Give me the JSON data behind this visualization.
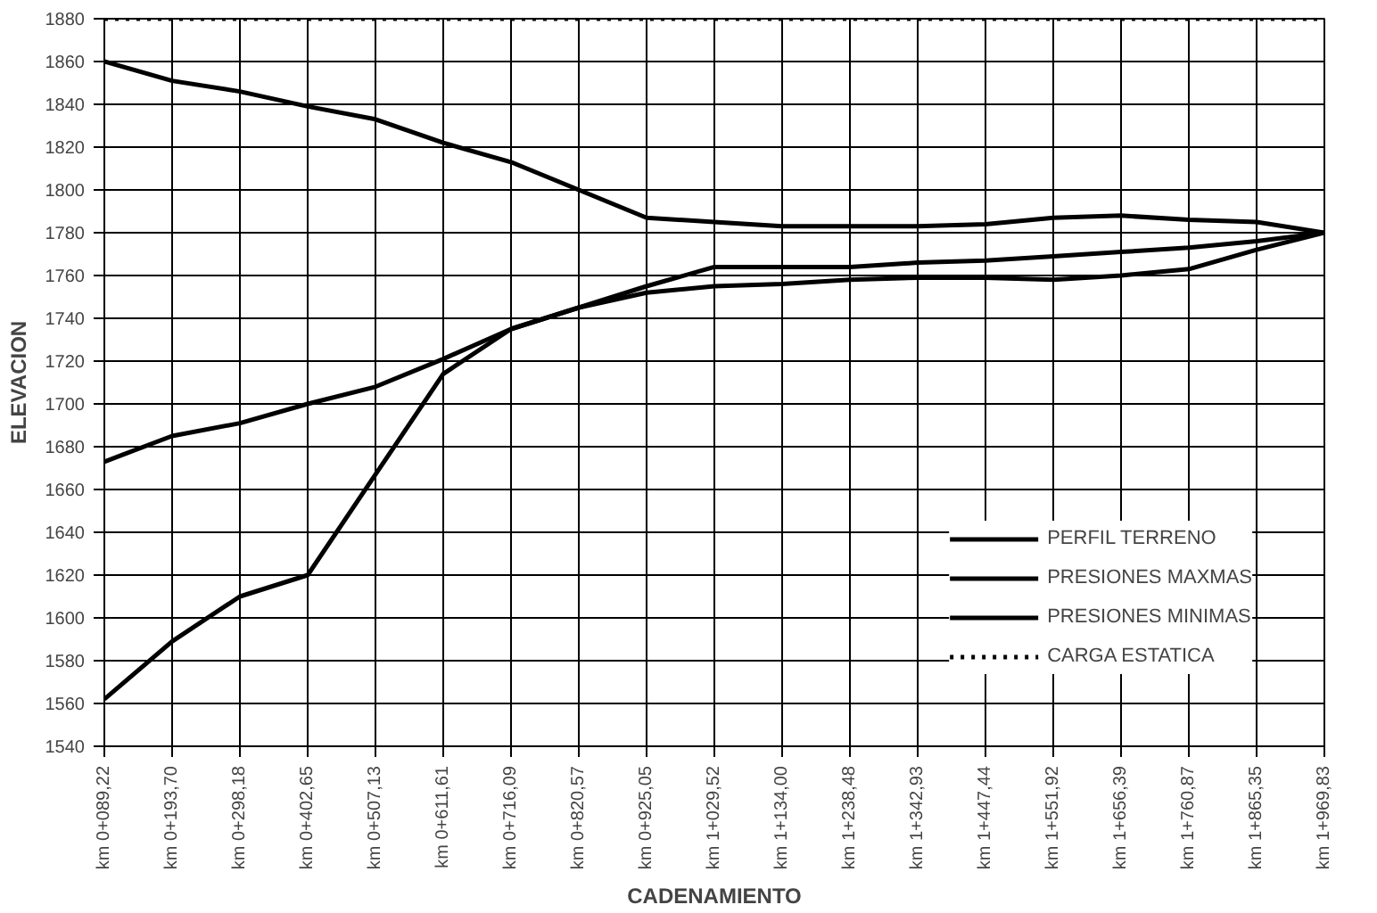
{
  "chart_data": {
    "type": "line",
    "xlabel": "CADENAMIENTO",
    "ylabel": "ELEVACION",
    "categories": [
      "km 0+089,22",
      "km 0+193,70",
      "km 0+298,18",
      "km 0+402,65",
      "km 0+507,13",
      "km 0+611,61",
      "km 0+716,09",
      "km 0+820,57",
      "km 0+925,05",
      "km 1+029,52",
      "km 1+134,00",
      "km 1+238,48",
      "km 1+342,93",
      "km 1+447,44",
      "km 1+551,92",
      "km 1+656,39",
      "km 1+760,87",
      "km 1+865,35",
      "km 1+969,83"
    ],
    "series": [
      {
        "name": "PERFIL TERRENO",
        "color": "#000000",
        "line_style": "solid",
        "values": [
          1562,
          1589,
          1610,
          1620,
          1667,
          1714,
          1735,
          1745,
          1752,
          1755,
          1756,
          1758,
          1759,
          1759,
          1758,
          1760,
          1763,
          1772,
          1780
        ]
      },
      {
        "name": "PRESIONES MAXMAS",
        "color": "#000000",
        "line_style": "solid",
        "values": [
          1860,
          1851,
          1846,
          1839,
          1833,
          1822,
          1813,
          1800,
          1787,
          1785,
          1783,
          1783,
          1783,
          1784,
          1787,
          1788,
          1786,
          1785,
          1780
        ]
      },
      {
        "name": "PRESIONES MINIMAS",
        "color": "#000000",
        "line_style": "solid",
        "values": [
          1673,
          1685,
          1691,
          1700,
          1708,
          1721,
          1735,
          1745,
          1755,
          1764,
          1764,
          1764,
          1766,
          1767,
          1769,
          1771,
          1773,
          1776,
          1780
        ]
      },
      {
        "name": "CARGA ESTATICA",
        "color": "#000000",
        "line_style": "dotted",
        "values": [
          1880,
          1880,
          1880,
          1880,
          1880,
          1880,
          1880,
          1880,
          1880,
          1880,
          1880,
          1880,
          1880,
          1880,
          1880,
          1880,
          1880,
          1880,
          1880
        ]
      }
    ],
    "ylim": [
      1540,
      1880
    ],
    "yticks": [
      1540,
      1560,
      1580,
      1600,
      1620,
      1640,
      1660,
      1680,
      1700,
      1720,
      1740,
      1760,
      1780,
      1800,
      1820,
      1840,
      1860,
      1880
    ],
    "grid": true,
    "legend": "bottom right",
    "marker": "none"
  }
}
